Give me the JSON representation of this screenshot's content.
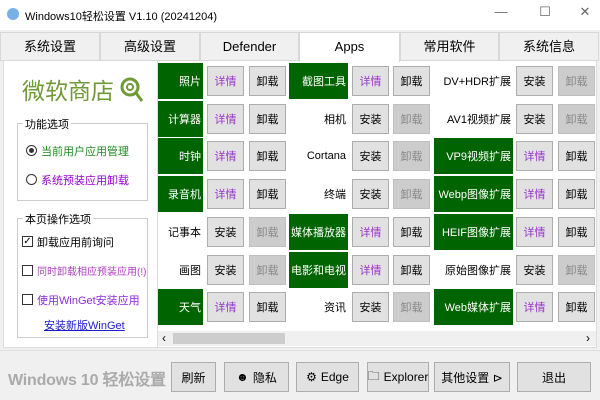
{
  "window": {
    "title": "Windows10轻松设置 V1.10  (20241204)",
    "minimize": "—",
    "maximize": "☐",
    "close": "✕"
  },
  "tabs": [
    {
      "label": "系统设置"
    },
    {
      "label": "高级设置"
    },
    {
      "label": "Defender"
    },
    {
      "label": "Apps",
      "active": true
    },
    {
      "label": "常用软件"
    },
    {
      "label": "系统信息"
    }
  ],
  "sidebar": {
    "logo": "微软商店",
    "function_group": {
      "title": "功能选项",
      "options": [
        {
          "label": "当前用户应用管理",
          "selected": true,
          "color": "#228b22"
        },
        {
          "label": "系统预装应用卸载",
          "selected": false,
          "color": "#9400d3"
        }
      ]
    },
    "page_group": {
      "title": "本页操作选项",
      "options": [
        {
          "label": "卸载应用前询问",
          "checked": true,
          "color": "#000000"
        },
        {
          "label": "同时卸载相应预装应用(!)",
          "checked": false,
          "color": "#b040c0"
        },
        {
          "label": "使用WinGet安装应用",
          "checked": false,
          "color": "#8a2be2"
        }
      ],
      "link": "安装新版WinGet"
    }
  },
  "buttons": {
    "details": "详情",
    "install": "安装",
    "uninstall": "卸载"
  },
  "colors": {
    "installed": "#006400",
    "details_text": "#9933cc"
  },
  "apps": [
    [
      {
        "name": "照片",
        "installed": true
      },
      {
        "name": "截图工具",
        "installed": true
      },
      {
        "name": "DV+HDR扩展",
        "installed": false
      }
    ],
    [
      {
        "name": "计算器",
        "installed": true
      },
      {
        "name": "相机",
        "installed": false
      },
      {
        "name": "AV1视频扩展",
        "installed": false
      }
    ],
    [
      {
        "name": "时钟",
        "installed": true
      },
      {
        "name": "Cortana",
        "installed": false
      },
      {
        "name": "VP9视频扩展",
        "installed": true
      }
    ],
    [
      {
        "name": "录音机",
        "installed": true
      },
      {
        "name": "终端",
        "installed": false
      },
      {
        "name": "Webp图像扩展",
        "installed": true
      }
    ],
    [
      {
        "name": "记事本",
        "installed": false
      },
      {
        "name": "媒体播放器",
        "installed": true
      },
      {
        "name": "HEIF图像扩展",
        "installed": true
      }
    ],
    [
      {
        "name": "画图",
        "installed": false
      },
      {
        "name": "电影和电视",
        "installed": true
      },
      {
        "name": "原始图像扩展",
        "installed": false
      }
    ],
    [
      {
        "name": "天气",
        "installed": true
      },
      {
        "name": "资讯",
        "installed": false
      },
      {
        "name": "Web媒体扩展",
        "installed": true
      }
    ]
  ],
  "scrollbar": {
    "left": "‹",
    "right": "›"
  },
  "footer": {
    "brand": "Windows 10 轻松设置",
    "refresh": "刷新",
    "privacy": "隐私",
    "edge": "Edge",
    "explorer": "Explorer",
    "more": "其他设置 ⊳",
    "exit": "退出"
  }
}
